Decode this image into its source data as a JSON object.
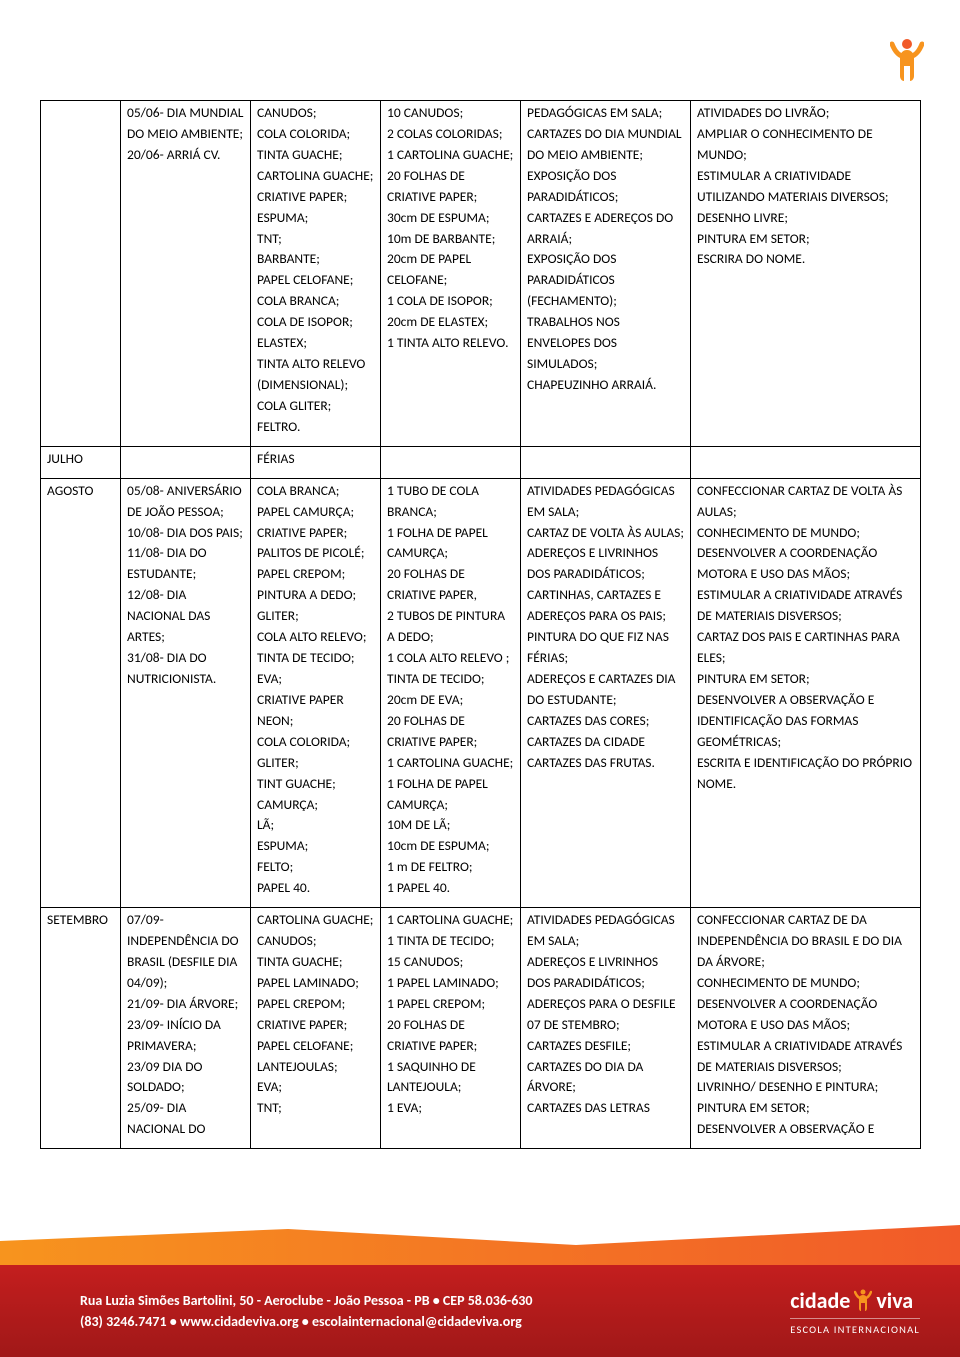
{
  "icon_colors": {
    "body": "#f7941e",
    "head": "#f15a29"
  },
  "footer": {
    "address": "Rua Luzia Simões Bartolini, 50 - Aeroclube - João Pessoa - PB  •  CEP 58.036-630",
    "phone": "(83) 3246.7471",
    "site": "www.cidadeviva.org",
    "email": "escolainternacional@cidadeviva.org",
    "brand1": "cidade",
    "brand2": "viva",
    "subtitle": "ESCOLA INTERNACIONAL",
    "bg_top": "#c41e1e",
    "bg_bottom": "#a01818",
    "wave_left": "#f7941e",
    "wave_right": "#f15a29"
  },
  "rows": [
    {
      "c1": "",
      "c2": "05/06- DIA MUNDIAL DO MEIO AMBIENTE;\n20/06- ARRIÁ  CV.",
      "c3": "CANUDOS;\nCOLA COLORIDA;\nTINTA GUACHE;\nCARTOLINA GUACHE;\nCRIATIVE PAPER;\nESPUMA;\nTNT;\nBARBANTE;\nPAPEL CELOFANE;\nCOLA BRANCA;\nCOLA DE ISOPOR;\nELASTEX;\nTINTA ALTO RELEVO (DIMENSIONAL);\nCOLA GLITER;\nFELTRO.",
      "c4": "10 CANUDOS;\n2 COLAS COLORIDAS;\n1 CARTOLINA GUACHE;\n20 FOLHAS DE CRIATIVE PAPER;\n30cm DE ESPUMA;\n10m DE BARBANTE;\n20cm DE PAPEL CELOFANE;\n1 COLA DE ISOPOR;\n20cm DE ELASTEX;\n1 TINTA ALTO RELEVO.",
      "c5": "PEDAGÓGICAS EM SALA;\nCARTAZES DO DIA MUNDIAL DO MEIO AMBIENTE;\nEXPOSIÇÃO DOS PARADIDÁTICOS;\nCARTAZES E ADEREÇOS DO ARRAIÁ;\nEXPOSIÇÃO DOS PARADIDÁTICOS (FECHAMENTO);\nTRABALHOS NOS ENVELOPES DOS SIMULADOS;\nCHAPEUZINHO ARRAIÁ.",
      "c6": "ATIVIDADES DO LIVRÃO;\nAMPLIAR O CONHECIMENTO DE MUNDO;\nESTIMULAR  A CRIATIVIDADE UTILIZANDO MATERIAIS DIVERSOS;\nDESENHO LIVRE;\nPINTURA EM SETOR;\nESCRIRA DO NOME."
    },
    {
      "c1": "JULHO",
      "c2": "",
      "c3": "FÉRIAS",
      "c4": "",
      "c5": "",
      "c6": ""
    },
    {
      "c1": "AGOSTO",
      "c2": "05/08- ANIVERSÁRIO DE JOÃO PESSOA;\n10/08- DIA DOS PAIS;\n11/08- DIA DO ESTUDANTE;\n12/08- DIA NACIONAL DAS ARTES;\n31/08- DIA DO NUTRICIONISTA.",
      "c3": "COLA BRANCA;\nPAPEL CAMURÇA;\nCRIATIVE PAPER;\nPALITOS DE PICOLÉ;\nPAPEL CREPOM;\nPINTURA A DEDO;\nGLITER;\nCOLA  ALTO RELEVO;\nTINTA DE TECIDO;\nEVA;\nCRIATIVE PAPER NEON;\nCOLA COLORIDA;\nGLITER;\nTINT GUACHE;\nCAMURÇA;\nLÃ;\nESPUMA;\nFELTO;\nPAPEL 40.",
      "c4": "1 TUBO DE COLA BRANCA;\n1 FOLHA DE PAPEL CAMURÇA;\n20 FOLHAS DE CRIATIVE PAPER,\n2 TUBOS DE PINTURA A DEDO;\n1 COLA ALTO RELEVO ;\nTINTA DE TECIDO;\n20cm DE EVA;\n20 FOLHAS DE CRIATIVE PAPER;\n1 CARTOLINA GUACHE;\n1 FOLHA DE PAPEL CAMURÇA;\n10M DE LÃ;\n10cm DE ESPUMA;\n1 m DE FELTRO;\n1 PAPEL 40.",
      "c5": "ATIVIDADES PEDAGÓGICAS EM SALA;\nCARTAZ DE VOLTA  ÀS AULAS;\nADEREÇOS E LIVRINHOS DOS PARADIDÁTICOS;\nCARTINHAS, CARTAZES E ADEREÇOS PARA OS PAIS;\nPINTURA DO QUE FIZ NAS FÉRIAS;\nADEREÇOS E CARTAZES DIA DO ESTUDANTE;\nCARTAZES DAS CORES;\nCARTAZES DA CIDADE CARTAZES DAS FRUTAS.",
      "c6": "CONFECCIONAR CARTAZ DE VOLTA ÀS AULAS;\nCONHECIMENTO DE MUNDO;\nDESENVOLVER A COORDENAÇÃO MOTORA E USO DAS MÃOS;\nESTIMULAR A CRIATIVIDADE ATRAVÉS DE MATERIAIS DISVERSOS;\nCARTAZ DOS PAIS E CARTINHAS PARA ELES;\nPINTURA EM SETOR;\nDESENVOLVER A OBSERVAÇÃO E IDENTIFICAÇÃO DAS FORMAS GEOMÉTRICAS;\nESCRITA E IDENTIFICAÇÃO DO PRÓPRIO NOME."
    },
    {
      "c1": "SETEMBRO",
      "c2": "07/09- INDEPENDÊNCIA DO BRASIL (DESFILE DIA 04/09);\n21/09- DIA ÁRVORE;\n23/09- INÍCIO DA PRIMAVERA;\n23/09 DIA DO SOLDADO;\n25/09- DIA NACIONAL DO",
      "c3": "CARTOLINA GUACHE;\nCANUDOS;\nTINTA GUACHE;\nPAPEL LAMINADO;\nPAPEL CREPOM;\nCRIATIVE PAPER;\nPAPEL CELOFANE;\nLANTEJOULAS;\nEVA;\nTNT;",
      "c4": "1 CARTOLINA GUACHE;\n1 TINTA DE TECIDO;\n15 CANUDOS;\n1 PAPEL LAMINADO;\n1 PAPEL CREPOM;\n20 FOLHAS DE CRIATIVE PAPER;\n1 SAQUINHO DE LANTEJOULA;\n1 EVA;",
      "c5": "ATIVIDADES PEDAGÓGICAS EM SALA;\nADEREÇOS E LIVRINHOS DOS PARADIDÁTICOS;\nADEREÇOS PARA O DESFILE 07 DE STEMBRO;\nCARTAZES DESFILE;\nCARTAZES DO DIA DA ÁRVORE;\nCARTAZES DAS LETRAS",
      "c6": "CONFECCIONAR CARTAZ DE DA INDEPENDÊNCIA DO BRASIL E DO DIA DA ÁRVORE;\nCONHECIMENTO DE MUNDO;\nDESENVOLVER A COORDENAÇÃO MOTORA E USO DAS MÃOS;\nESTIMULAR A CRIATIVIDADE ATRAVÉS DE MATERIAIS DISVERSOS;\nLIVRINHO/ DESENHO E PINTURA;\nPINTURA EM SETOR;\nDESENVOLVER A OBSERVAÇÃO E"
    }
  ]
}
